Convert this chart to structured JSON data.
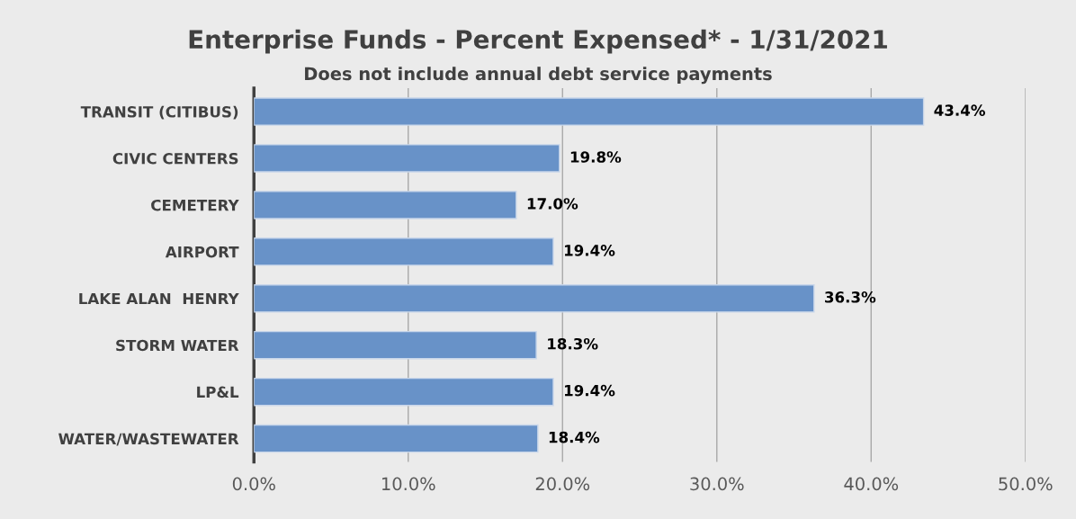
{
  "chart_data": {
    "type": "bar",
    "orientation": "horizontal",
    "title": "Enterprise Funds - Percent Expensed* - 1/31/2021",
    "subtitle": "Does not include annual debt service payments",
    "categories": [
      "TRANSIT (CITIBUS)",
      "CIVIC CENTERS",
      "CEMETERY",
      "AIRPORT",
      "LAKE ALAN  HENRY",
      "STORM WATER",
      "LP&L",
      "WATER/WASTEWATER"
    ],
    "values": [
      43.4,
      19.8,
      17.0,
      19.4,
      36.3,
      18.3,
      19.4,
      18.4
    ],
    "value_labels": [
      "43.4%",
      "19.8%",
      "17.0%",
      "19.4%",
      "36.3%",
      "18.3%",
      "19.4%",
      "18.4%"
    ],
    "color": "#6892c8",
    "xlim": [
      0,
      50
    ],
    "xticks": [
      {
        "value": 0,
        "label": "0.0%"
      },
      {
        "value": 10,
        "label": "10.0%"
      },
      {
        "value": 20,
        "label": "20.0%"
      },
      {
        "value": 30,
        "label": "30.0%"
      },
      {
        "value": 40,
        "label": "40.0%"
      },
      {
        "value": 50,
        "label": "50.0%"
      }
    ],
    "grid": "x"
  }
}
